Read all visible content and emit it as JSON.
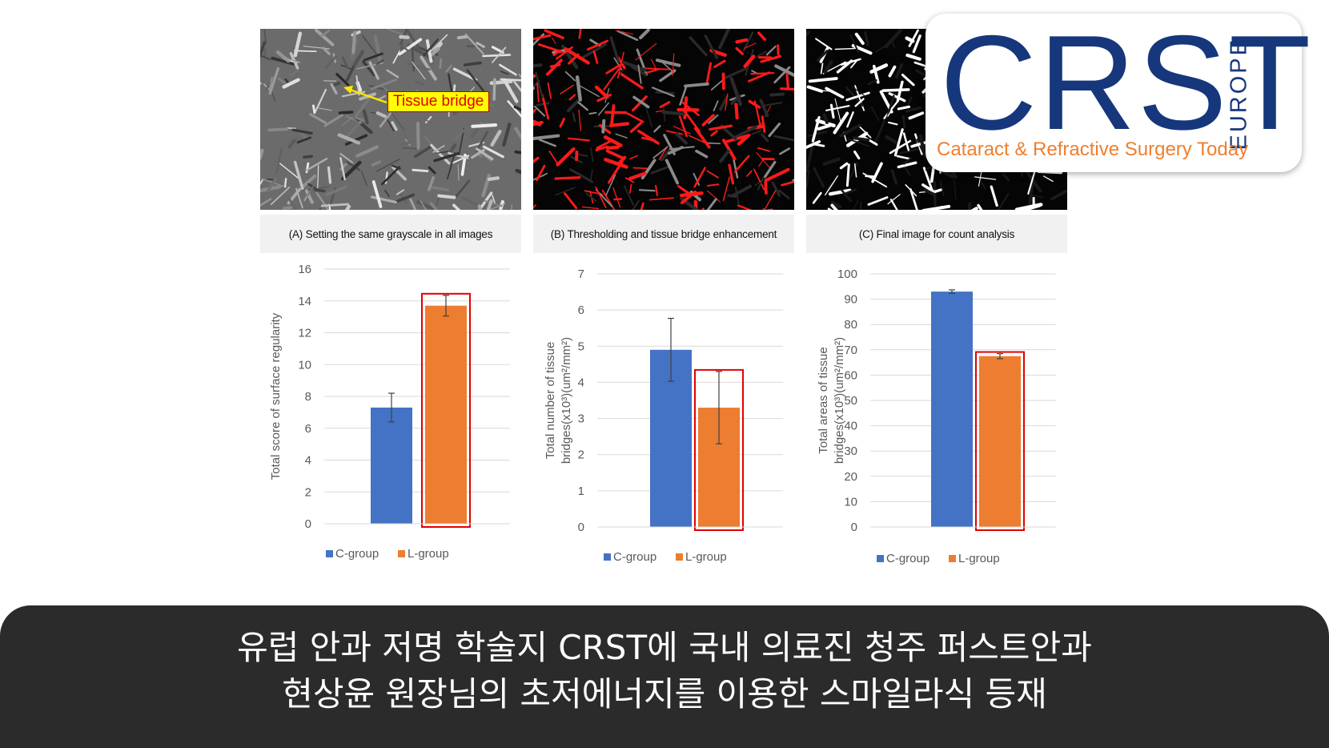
{
  "logo": {
    "wordmark": "CRST",
    "region": "EUROPE",
    "tagline": "Cataract & Refractive Surgery Today",
    "colors": {
      "navy": "#17377c",
      "orange": "#ef7f2e"
    }
  },
  "panels": [
    {
      "caption": "(A) Setting the same grayscale in all images",
      "annotation": "Tissue bridge"
    },
    {
      "caption": "(B) Thresholding and tissue bridge enhancement"
    },
    {
      "caption": "(C) Final image for count analysis"
    }
  ],
  "banner": {
    "line1": "유럽 안과 저명 학술지 CRST에 국내 의료진 청주 퍼스트안과",
    "line2": "현상윤 원장님의 초저에너지를 이용한 스마일라식 등재"
  },
  "chart_data": [
    {
      "type": "bar",
      "categories": [
        "C-group",
        "L-group"
      ],
      "values": [
        7.3,
        13.7
      ],
      "errors": [
        0.9,
        0.65
      ],
      "ylabel": "Total score of surface regularity",
      "ylim": [
        0,
        16
      ],
      "yticks": [
        0,
        2,
        4,
        6,
        8,
        10,
        12,
        14,
        16
      ],
      "legend": [
        "C-group",
        "L-group"
      ],
      "legend_position": "bottom",
      "highlight": "L-group",
      "grid": true,
      "colors": [
        "#4472c4",
        "#ed7d31"
      ]
    },
    {
      "type": "bar",
      "categories": [
        "C-group",
        "L-group"
      ],
      "values": [
        4.9,
        3.3
      ],
      "errors": [
        0.87,
        1.0
      ],
      "ylabel": "Total number of tissue bridges(x10³)(um²/mm²)",
      "ylim": [
        0,
        7
      ],
      "yticks": [
        0,
        1,
        2,
        3,
        4,
        5,
        6,
        7
      ],
      "legend": [
        "C-group",
        "L-group"
      ],
      "legend_position": "bottom",
      "highlight": "L-group",
      "grid": true,
      "colors": [
        "#4472c4",
        "#ed7d31"
      ]
    },
    {
      "type": "bar",
      "categories": [
        "C-group",
        "L-group"
      ],
      "values": [
        93,
        67.5
      ],
      "errors": [
        0.7,
        1.0
      ],
      "ylabel": "Total areas of tissue bridges(x10³)(um²/mm²)",
      "ylim": [
        0,
        100
      ],
      "yticks": [
        0,
        10,
        20,
        30,
        40,
        50,
        60,
        70,
        80,
        90,
        100
      ],
      "legend": [
        "C-group",
        "L-group"
      ],
      "legend_position": "bottom",
      "highlight": "L-group",
      "grid": true,
      "colors": [
        "#4472c4",
        "#ed7d31"
      ]
    }
  ]
}
